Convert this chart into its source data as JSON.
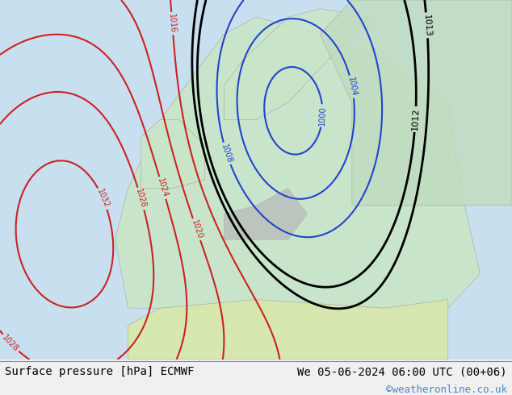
{
  "title_left": "Surface pressure [hPa] ECMWF",
  "title_right": "We 05-06-2024 06:00 UTC (00+06)",
  "credit": "©weatheronline.co.uk",
  "bg_color": "#e8f4e8",
  "map_bg": "#d0e8d0",
  "ocean_color": "#c8dff0",
  "land_color": "#c8e6c8",
  "footer_bg": "#f0f0f0",
  "footer_text_color": "#000000",
  "credit_color": "#4488cc",
  "font_family": "monospace",
  "fig_width": 6.34,
  "fig_height": 4.9,
  "dpi": 100
}
